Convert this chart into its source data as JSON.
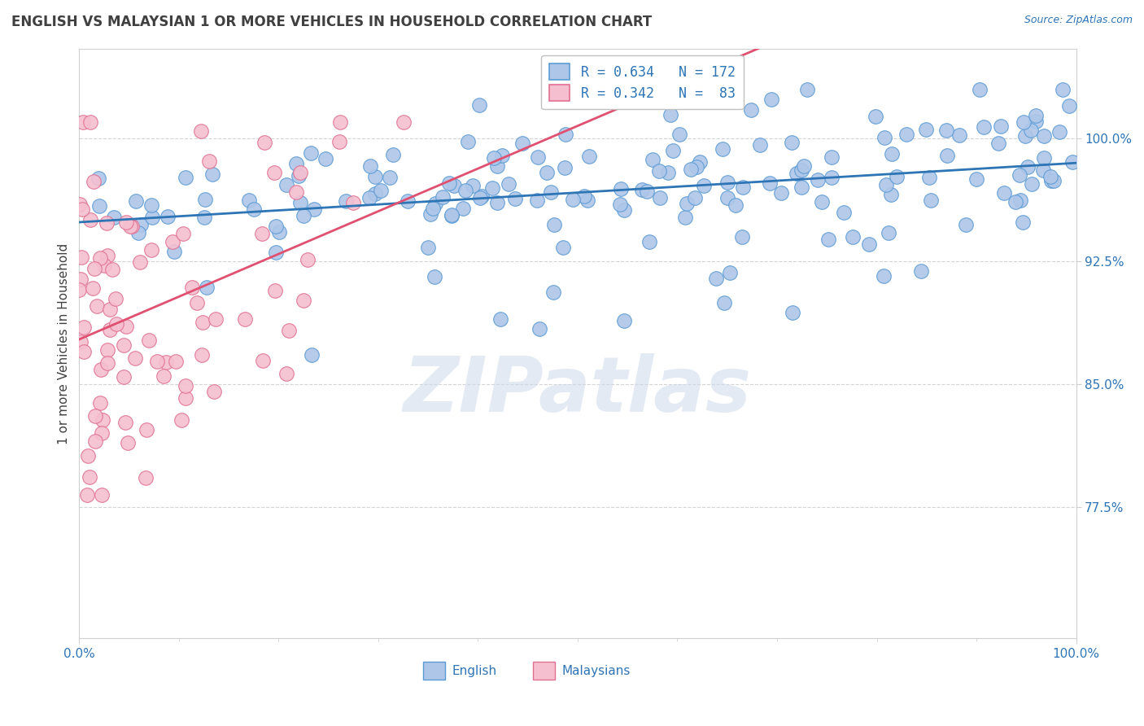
{
  "title": "ENGLISH VS MALAYSIAN 1 OR MORE VEHICLES IN HOUSEHOLD CORRELATION CHART",
  "source": "Source: ZipAtlas.com",
  "ylabel": "1 or more Vehicles in Household",
  "xmin": 0.0,
  "xmax": 1.0,
  "ymin": 0.695,
  "ymax": 1.055,
  "yticks": [
    0.775,
    0.85,
    0.925,
    1.0
  ],
  "ytick_labels": [
    "77.5%",
    "85.0%",
    "92.5%",
    "100.0%"
  ],
  "xtick_labels": [
    "0.0%",
    "100.0%"
  ],
  "english_R": 0.634,
  "english_N": 172,
  "malaysian_R": 0.342,
  "malaysian_N": 83,
  "english_color": "#aec6e8",
  "english_edge_color": "#5b9bd5",
  "malaysian_color": "#f5bfd0",
  "malaysian_edge_color": "#e07090",
  "trendline_english_color": "#2e75b6",
  "trendline_malaysian_color": "#e05070",
  "watermark_text": "ZIPatlas",
  "watermark_color": "#ccd9ea",
  "background_color": "#ffffff",
  "grid_color": "#d0d0d0",
  "legend_text_color": "#2e75b6",
  "title_color": "#404040",
  "source_color": "#2e75b6"
}
